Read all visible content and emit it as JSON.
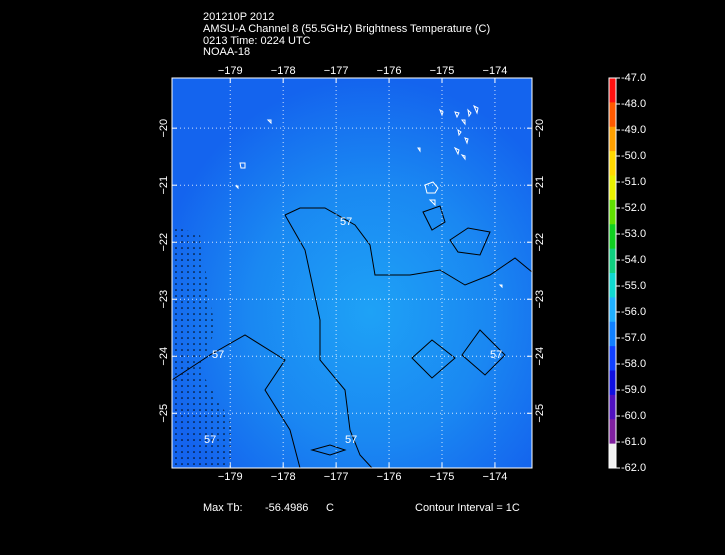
{
  "header": {
    "lines": [
      "201210P 2012",
      "AMSU-A Channel 8 (55.5GHz) Brightness Temperature (C)",
      "0213 Time: 0224 UTC",
      "NOAA-18"
    ]
  },
  "map": {
    "lonlim": [
      -180.1,
      -173.3
    ],
    "latlim": [
      -19.12,
      -25.96
    ],
    "lonticks": [
      {
        "value": -179,
        "label": "−179"
      },
      {
        "value": -178,
        "label": "−178"
      },
      {
        "value": -177,
        "label": "−177"
      },
      {
        "value": -176,
        "label": "−176"
      },
      {
        "value": -175,
        "label": "−175"
      },
      {
        "value": -174,
        "label": "−174"
      }
    ],
    "latticks": [
      {
        "value": -20,
        "label": "−20"
      },
      {
        "value": -21,
        "label": "−21"
      },
      {
        "value": -22,
        "label": "−22"
      },
      {
        "value": -23,
        "label": "−23"
      },
      {
        "value": -24,
        "label": "−24"
      },
      {
        "value": -25,
        "label": "−25"
      }
    ],
    "contour_labels": [
      "57",
      "57",
      "57",
      "57",
      "57"
    ]
  },
  "colorbar": {
    "lim": [
      -47,
      -62
    ],
    "ticks": [
      {
        "value": -47,
        "label": "-47.0"
      },
      {
        "value": -48,
        "label": "-48.0"
      },
      {
        "value": -49,
        "label": "-49.0"
      },
      {
        "value": -50,
        "label": "-50.0"
      },
      {
        "value": -51,
        "label": "-51.0"
      },
      {
        "value": -52,
        "label": "-52.0"
      },
      {
        "value": -53,
        "label": "-53.0"
      },
      {
        "value": -54,
        "label": "-54.0"
      },
      {
        "value": -55,
        "label": "-55.0"
      },
      {
        "value": -56,
        "label": "-56.0"
      },
      {
        "value": -57,
        "label": "-57.0"
      },
      {
        "value": -58,
        "label": "-58.0"
      },
      {
        "value": -59,
        "label": "-59.0"
      },
      {
        "value": -60,
        "label": "-60.0"
      },
      {
        "value": -61,
        "label": "-61.0"
      },
      {
        "value": -62,
        "label": "-62.0"
      }
    ],
    "colors": [
      "#ff1010",
      "#ff5a00",
      "#ffa000",
      "#ffd800",
      "#e8f000",
      "#60e000",
      "#10d020",
      "#10d080",
      "#10d8d0",
      "#20b0ff",
      "#1080ff",
      "#1040ff",
      "#1010e0",
      "#5010c0",
      "#8020a0",
      "#f0f0f0"
    ]
  },
  "footer": {
    "max_label": "Max Tb:",
    "max_value": "-56.4986",
    "max_unit": "C",
    "contour_interval": "Contour Interval = 1C"
  }
}
